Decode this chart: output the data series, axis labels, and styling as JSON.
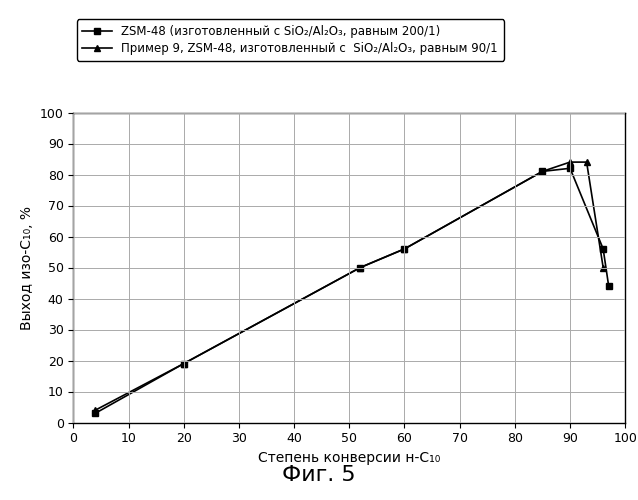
{
  "series1_label": "ZSM-48 (изготовленный с SiO₂/Al₂O₃, равным 200/1)",
  "series2_label": "Пример 9, ZSM-48, изготовленный с  SiO₂/Al₂O₃, равным 90/1",
  "series1_x": [
    4,
    20,
    52,
    60,
    85,
    90,
    96,
    97
  ],
  "series1_y": [
    3,
    19,
    50,
    56,
    81,
    82,
    56,
    44
  ],
  "series2_x": [
    4,
    20,
    52,
    60,
    85,
    90,
    93,
    96
  ],
  "series2_y": [
    4,
    19,
    50,
    56,
    81,
    84,
    84,
    50
  ],
  "xlabel": "Степень конверсии н-С₁₀",
  "ylabel": "Выход изо-С₁₀, %",
  "fig_label": "Фиг. 5",
  "xlim": [
    0,
    100
  ],
  "ylim": [
    0,
    100
  ],
  "xticks": [
    0,
    10,
    20,
    30,
    40,
    50,
    60,
    70,
    80,
    90,
    100
  ],
  "yticks": [
    0,
    10,
    20,
    30,
    40,
    50,
    60,
    70,
    80,
    90,
    100
  ],
  "series1_color": "#000000",
  "series2_color": "#000000",
  "series1_marker": "s",
  "series2_marker": "^",
  "background": "#ffffff",
  "grid_color": "#aaaaaa",
  "legend_fontsize": 8.5,
  "axis_fontsize": 10,
  "fig_label_fontsize": 16,
  "tick_fontsize": 9
}
